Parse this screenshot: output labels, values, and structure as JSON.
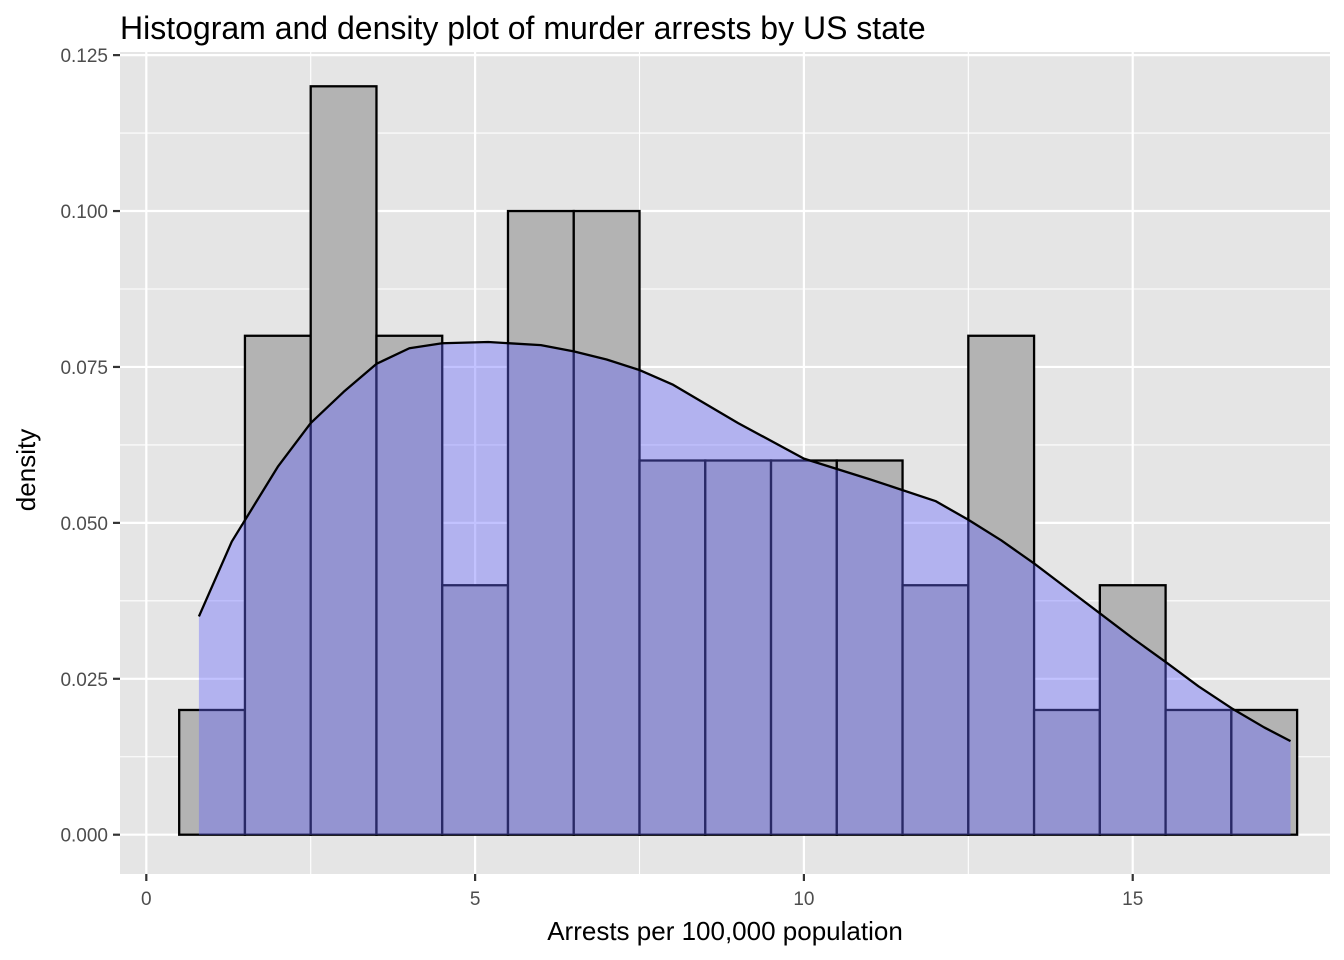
{
  "chart_data": {
    "type": "histogram",
    "title": "Histogram and density plot of murder arrests by US state",
    "xlabel": "Arrests per 100,000 population",
    "ylabel": "density",
    "xlim": [
      -0.4,
      18.0
    ],
    "ylim": [
      -0.0063,
      0.1255
    ],
    "x_ticks": [
      0,
      5,
      10,
      15
    ],
    "x_tick_labels": [
      "0",
      "5",
      "10",
      "15"
    ],
    "y_ticks": [
      0,
      0.025,
      0.05,
      0.075,
      0.1,
      0.125
    ],
    "y_tick_labels": [
      "0.000",
      "0.025",
      "0.050",
      "0.075",
      "0.100",
      "0.125"
    ],
    "grid": true,
    "bins": [
      {
        "x0": 0.5,
        "x1": 1.5,
        "density": 0.02
      },
      {
        "x0": 1.5,
        "x1": 2.5,
        "density": 0.08
      },
      {
        "x0": 2.5,
        "x1": 3.5,
        "density": 0.12
      },
      {
        "x0": 3.5,
        "x1": 4.5,
        "density": 0.08
      },
      {
        "x0": 4.5,
        "x1": 5.5,
        "density": 0.04
      },
      {
        "x0": 5.5,
        "x1": 6.5,
        "density": 0.1
      },
      {
        "x0": 6.5,
        "x1": 7.5,
        "density": 0.1
      },
      {
        "x0": 7.5,
        "x1": 8.5,
        "density": 0.06
      },
      {
        "x0": 8.5,
        "x1": 9.5,
        "density": 0.06
      },
      {
        "x0": 9.5,
        "x1": 10.5,
        "density": 0.06
      },
      {
        "x0": 10.5,
        "x1": 11.5,
        "density": 0.06
      },
      {
        "x0": 11.5,
        "x1": 12.5,
        "density": 0.04
      },
      {
        "x0": 12.5,
        "x1": 13.5,
        "density": 0.08
      },
      {
        "x0": 13.5,
        "x1": 14.5,
        "density": 0.02
      },
      {
        "x0": 14.5,
        "x1": 15.5,
        "density": 0.04
      },
      {
        "x0": 15.5,
        "x1": 16.5,
        "density": 0.02
      },
      {
        "x0": 16.5,
        "x1": 17.5,
        "density": 0.02
      }
    ],
    "density_curve": {
      "x": [
        0.8,
        1.3,
        2.0,
        2.5,
        3.0,
        3.5,
        4.0,
        4.5,
        5.2,
        6.0,
        6.5,
        7.0,
        7.5,
        8.0,
        9.0,
        10.0,
        11.0,
        12.0,
        12.5,
        13.0,
        13.5,
        14.0,
        14.5,
        15.0,
        15.5,
        16.0,
        16.5,
        17.0,
        17.4
      ],
      "y": [
        0.035,
        0.047,
        0.059,
        0.066,
        0.071,
        0.0755,
        0.078,
        0.0788,
        0.079,
        0.0785,
        0.0775,
        0.0762,
        0.0745,
        0.0722,
        0.066,
        0.0603,
        0.057,
        0.0535,
        0.0505,
        0.0472,
        0.0435,
        0.0395,
        0.0355,
        0.0315,
        0.0277,
        0.0238,
        0.0203,
        0.0172,
        0.015
      ]
    },
    "colors": {
      "panel_background": "#e5e5e5",
      "grid": "#ffffff",
      "histogram_fill": "#b3b3b3",
      "histogram_outline": "#000000",
      "density_fill": "#6666ff",
      "density_fill_opacity": 0.4,
      "density_line": "#000000"
    }
  }
}
